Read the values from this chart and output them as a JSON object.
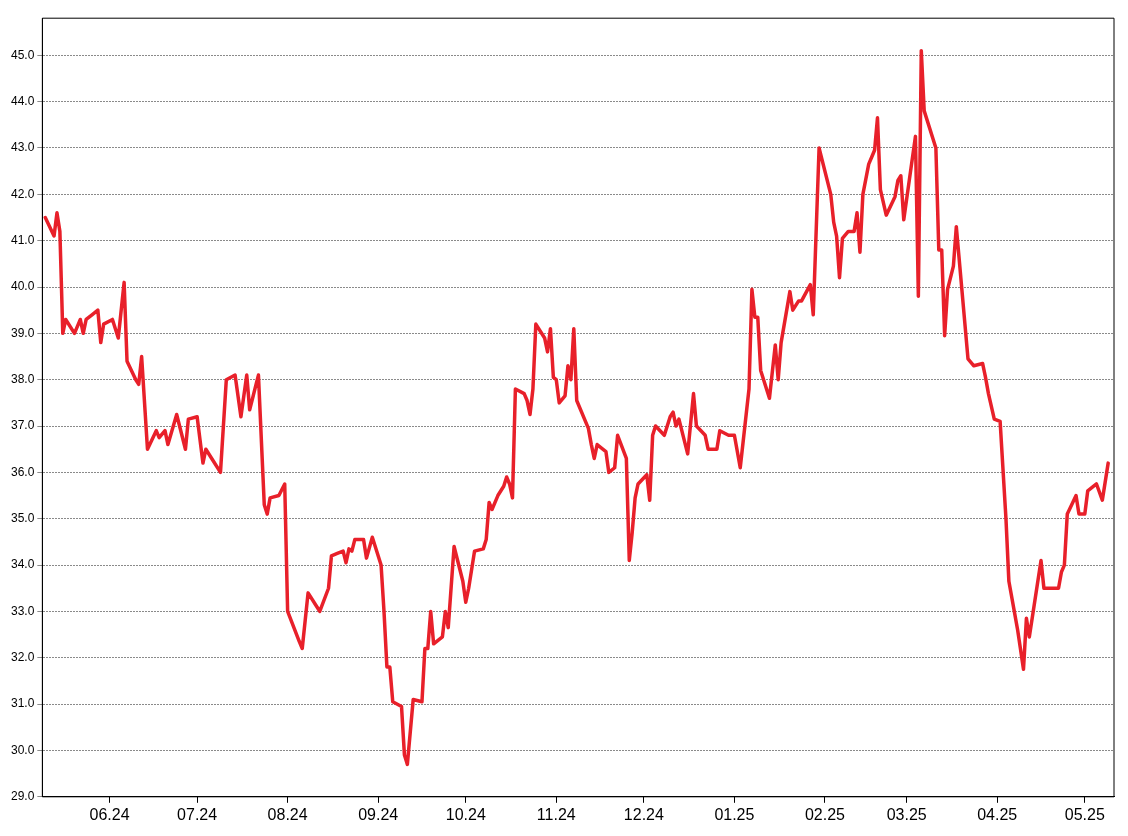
{
  "chart_data": {
    "type": "line",
    "x": [
      "2024-05-10",
      "2024-05-13",
      "2024-05-14",
      "2024-05-15",
      "2024-05-16",
      "2024-05-17",
      "2024-05-20",
      "2024-05-22",
      "2024-05-23",
      "2024-05-24",
      "2024-05-26",
      "2024-05-28",
      "2024-05-29",
      "2024-05-30",
      "2024-06-02",
      "2024-06-04",
      "2024-06-06",
      "2024-06-07",
      "2024-06-10",
      "2024-06-11",
      "2024-06-12",
      "2024-06-14",
      "2024-06-17",
      "2024-06-18",
      "2024-06-20",
      "2024-06-21",
      "2024-06-24",
      "2024-06-27",
      "2024-06-28",
      "2024-07-01",
      "2024-07-03",
      "2024-07-04",
      "2024-07-06",
      "2024-07-09",
      "2024-07-11",
      "2024-07-14",
      "2024-07-16",
      "2024-07-18",
      "2024-07-19",
      "2024-07-22",
      "2024-07-24",
      "2024-07-25",
      "2024-07-26",
      "2024-07-29",
      "2024-07-31",
      "2024-08-01",
      "2024-08-05",
      "2024-08-06",
      "2024-08-08",
      "2024-08-11",
      "2024-08-12",
      "2024-08-15",
      "2024-08-16",
      "2024-08-18",
      "2024-08-20",
      "2024-08-21",
      "2024-08-22",
      "2024-08-23",
      "2024-08-24",
      "2024-08-27",
      "2024-08-28",
      "2024-08-30",
      "2024-09-02",
      "2024-09-03",
      "2024-09-04",
      "2024-09-05",
      "2024-09-06",
      "2024-09-09",
      "2024-09-10",
      "2024-09-11",
      "2024-09-13",
      "2024-09-16",
      "2024-09-17",
      "2024-09-18",
      "2024-09-19",
      "2024-09-20",
      "2024-09-23",
      "2024-09-24",
      "2024-09-25",
      "2024-09-27",
      "2024-09-30",
      "2024-10-01",
      "2024-10-02",
      "2024-10-04",
      "2024-10-07",
      "2024-10-08",
      "2024-10-09",
      "2024-10-10",
      "2024-10-12",
      "2024-10-14",
      "2024-10-15",
      "2024-10-16",
      "2024-10-17",
      "2024-10-18",
      "2024-10-21",
      "2024-10-22",
      "2024-10-23",
      "2024-10-24",
      "2024-10-25",
      "2024-10-28",
      "2024-10-29",
      "2024-10-30",
      "2024-10-31",
      "2024-11-01",
      "2024-11-02",
      "2024-11-04",
      "2024-11-05",
      "2024-11-06",
      "2024-11-07",
      "2024-11-08",
      "2024-11-12",
      "2024-11-13",
      "2024-11-14",
      "2024-11-15",
      "2024-11-18",
      "2024-11-19",
      "2024-11-21",
      "2024-11-22",
      "2024-11-25",
      "2024-11-26",
      "2024-11-27",
      "2024-11-28",
      "2024-11-29",
      "2024-12-02",
      "2024-12-03",
      "2024-12-04",
      "2024-12-05",
      "2024-12-08",
      "2024-12-10",
      "2024-12-11",
      "2024-12-12",
      "2024-12-13",
      "2024-12-16",
      "2024-12-18",
      "2024-12-19",
      "2024-12-22",
      "2024-12-23",
      "2024-12-26",
      "2024-12-27",
      "2024-12-30",
      "2025-01-01",
      "2025-01-03",
      "2025-01-06",
      "2025-01-07",
      "2025-01-08",
      "2025-01-09",
      "2025-01-10",
      "2025-01-13",
      "2025-01-15",
      "2025-01-16",
      "2025-01-17",
      "2025-01-20",
      "2025-01-21",
      "2025-01-23",
      "2025-01-24",
      "2025-01-27",
      "2025-01-28",
      "2025-01-30",
      "2025-02-03",
      "2025-02-04",
      "2025-02-05",
      "2025-02-06",
      "2025-02-07",
      "2025-02-09",
      "2025-02-11",
      "2025-02-12",
      "2025-02-13",
      "2025-02-14",
      "2025-02-16",
      "2025-02-17",
      "2025-02-18",
      "2025-02-19",
      "2025-02-20",
      "2025-02-22",
      "2025-02-25",
      "2025-02-26",
      "2025-02-27",
      "2025-02-28",
      "2025-03-04",
      "2025-03-05",
      "2025-03-06",
      "2025-03-07",
      "2025-03-11",
      "2025-03-12",
      "2025-03-13",
      "2025-03-14",
      "2025-03-15",
      "2025-03-17",
      "2025-03-18",
      "2025-03-22",
      "2025-03-24",
      "2025-03-27",
      "2025-03-28",
      "2025-03-29",
      "2025-03-31",
      "2025-04-02",
      "2025-04-04",
      "2025-04-05",
      "2025-04-08",
      "2025-04-10",
      "2025-04-11",
      "2025-04-12",
      "2025-04-16",
      "2025-04-17",
      "2025-04-22",
      "2025-04-23",
      "2025-04-24",
      "2025-04-25",
      "2025-04-28",
      "2025-04-29",
      "2025-05-01",
      "2025-05-02",
      "2025-05-05",
      "2025-05-07",
      "2025-05-09"
    ],
    "series": [
      {
        "color": "#e8202a",
        "values": [
          41.5,
          41.1,
          41.6,
          41.2,
          39.0,
          39.3,
          39.0,
          39.3,
          39.0,
          39.3,
          39.4,
          39.5,
          38.8,
          39.2,
          39.3,
          38.9,
          40.1,
          38.4,
          38.0,
          37.9,
          38.5,
          36.5,
          36.9,
          36.75,
          36.9,
          36.6,
          37.25,
          36.5,
          37.15,
          37.2,
          36.2,
          36.5,
          36.3,
          36.0,
          38.0,
          38.1,
          37.2,
          38.1,
          37.35,
          38.1,
          35.3,
          35.1,
          35.45,
          35.5,
          35.75,
          33.0,
          32.35,
          32.2,
          33.4,
          33.1,
          33.0,
          33.5,
          34.2,
          34.25,
          34.3,
          34.05,
          34.35,
          34.3,
          34.55,
          34.55,
          34.15,
          34.6,
          34.0,
          33.0,
          31.8,
          31.8,
          31.05,
          30.95,
          29.9,
          29.7,
          31.1,
          31.05,
          32.2,
          32.2,
          33.0,
          32.3,
          32.45,
          33.0,
          32.65,
          34.4,
          33.65,
          33.2,
          33.5,
          34.3,
          34.35,
          34.55,
          35.35,
          35.2,
          35.5,
          35.7,
          35.9,
          35.75,
          35.45,
          37.8,
          37.7,
          37.55,
          37.25,
          37.8,
          39.2,
          38.9,
          38.6,
          39.1,
          38.05,
          38.0,
          37.5,
          37.65,
          38.3,
          38.0,
          39.1,
          37.55,
          36.95,
          36.6,
          36.3,
          36.6,
          36.45,
          36.0,
          36.1,
          36.8,
          36.3,
          34.1,
          34.7,
          35.45,
          35.75,
          35.95,
          35.4,
          36.8,
          37.0,
          36.8,
          37.2,
          37.3,
          37.0,
          37.15,
          36.4,
          37.7,
          37.0,
          36.8,
          36.5,
          36.5,
          36.9,
          36.8,
          36.8,
          36.1,
          37.8,
          39.95,
          39.35,
          39.35,
          38.2,
          37.6,
          38.75,
          38.0,
          38.8,
          39.9,
          39.5,
          39.7,
          39.7,
          40.05,
          39.4,
          43.0,
          42.0,
          41.4,
          41.1,
          40.2,
          41.05,
          41.2,
          41.2,
          41.6,
          40.75,
          42.0,
          42.65,
          42.8,
          42.95,
          43.65,
          42.1,
          41.55,
          41.95,
          42.3,
          42.4,
          41.45,
          43.25,
          39.8,
          45.1,
          43.8,
          43.0,
          40.8,
          40.8,
          38.95,
          39.95,
          40.45,
          41.3,
          38.45,
          38.3,
          38.35,
          38.05,
          37.7,
          37.15,
          37.1,
          35.0,
          33.65,
          32.6,
          31.75,
          32.85,
          32.45,
          34.1,
          33.5,
          33.5,
          33.85,
          34.0,
          35.1,
          35.5,
          35.1,
          35.1,
          35.6,
          35.75,
          35.4,
          36.2
        ]
      }
    ],
    "xlim": [
      "2024-05-09",
      "2025-05-11"
    ],
    "xticks": [
      {
        "value": "2024-06-01",
        "label": "06.24"
      },
      {
        "value": "2024-07-01",
        "label": "07.24"
      },
      {
        "value": "2024-08-01",
        "label": "08.24"
      },
      {
        "value": "2024-09-01",
        "label": "09.24"
      },
      {
        "value": "2024-10-01",
        "label": "10.24"
      },
      {
        "value": "2024-11-01",
        "label": "11.24"
      },
      {
        "value": "2024-12-01",
        "label": "12.24"
      },
      {
        "value": "2025-01-01",
        "label": "01.25"
      },
      {
        "value": "2025-02-01",
        "label": "02.25"
      },
      {
        "value": "2025-03-01",
        "label": "03.25"
      },
      {
        "value": "2025-04-01",
        "label": "04.25"
      },
      {
        "value": "2025-05-01",
        "label": "05.25"
      }
    ],
    "ylim": [
      29,
      45.8
    ],
    "yticks": [
      {
        "value": 29,
        "label": "29.0"
      },
      {
        "value": 30,
        "label": "30.0"
      },
      {
        "value": 31,
        "label": "31.0"
      },
      {
        "value": 32,
        "label": "32.0"
      },
      {
        "value": 33,
        "label": "33.0"
      },
      {
        "value": 34,
        "label": "34.0"
      },
      {
        "value": 35,
        "label": "35.0"
      },
      {
        "value": 36,
        "label": "36.0"
      },
      {
        "value": 37,
        "label": "37.0"
      },
      {
        "value": 38,
        "label": "38.0"
      },
      {
        "value": 39,
        "label": "39.0"
      },
      {
        "value": 40,
        "label": "40.0"
      },
      {
        "value": 41,
        "label": "41.0"
      },
      {
        "value": 42,
        "label": "42.0"
      },
      {
        "value": 43,
        "label": "43.0"
      },
      {
        "value": 44,
        "label": "44.0"
      },
      {
        "value": 45,
        "label": "45.0"
      }
    ],
    "grid": "y",
    "legend": false,
    "marker": "none",
    "line_style": "solid"
  }
}
